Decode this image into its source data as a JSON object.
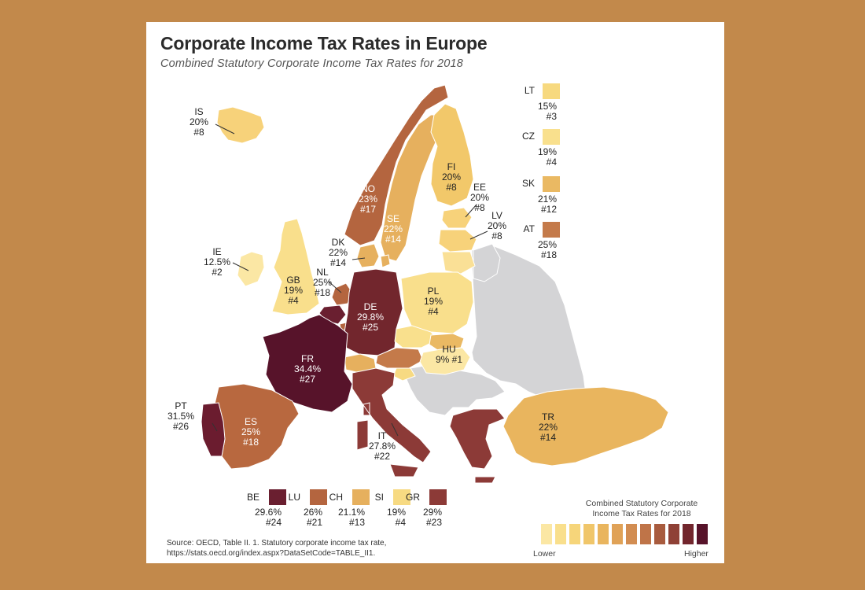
{
  "title": "Corporate Income Tax Rates in Europe",
  "subtitle": "Combined Statutory Corporate Income Tax Rates for 2018",
  "colors": {
    "page_background": "#c2894b",
    "non_oecd": "#d4d4d6",
    "scale": [
      "#fbe7a4",
      "#f9df8c",
      "#f6d57a",
      "#f0c66a",
      "#e9b55e",
      "#e0a257",
      "#d28d52",
      "#bf7448",
      "#a85b3e",
      "#8f4136",
      "#72262d",
      "#57132a"
    ]
  },
  "countries": {
    "IS": {
      "code": "IS",
      "rate": "20%",
      "rank": "#8"
    },
    "IE": {
      "code": "IE",
      "rate": "12.5%",
      "rank": "#2"
    },
    "GB": {
      "code": "GB",
      "rate": "19%",
      "rank": "#4"
    },
    "NO": {
      "code": "NO",
      "rate": "23%",
      "rank": "#17"
    },
    "SE": {
      "code": "SE",
      "rate": "22%",
      "rank": "#14"
    },
    "FI": {
      "code": "FI",
      "rate": "20%",
      "rank": "#8"
    },
    "EE": {
      "code": "EE",
      "rate": "20%",
      "rank": "#8"
    },
    "LV": {
      "code": "LV",
      "rate": "20%",
      "rank": "#8"
    },
    "DK": {
      "code": "DK",
      "rate": "22%",
      "rank": "#14"
    },
    "NL": {
      "code": "NL",
      "rate": "25%",
      "rank": "#18"
    },
    "DE": {
      "code": "DE",
      "rate": "29.8%",
      "rank": "#25"
    },
    "PL": {
      "code": "PL",
      "rate": "19%",
      "rank": "#4"
    },
    "FR": {
      "code": "FR",
      "rate": "34.4%",
      "rank": "#27"
    },
    "HU": {
      "code": "HU",
      "rate": "9%",
      "rank": "#1"
    },
    "PT": {
      "code": "PT",
      "rate": "31.5%",
      "rank": "#26"
    },
    "ES": {
      "code": "ES",
      "rate": "25%",
      "rank": "#18"
    },
    "IT": {
      "code": "IT",
      "rate": "27.8%",
      "rank": "#22"
    },
    "TR": {
      "code": "TR",
      "rate": "22%",
      "rank": "#14"
    }
  },
  "side_legend": [
    {
      "code": "LT",
      "rate": "15%",
      "rank": "#3",
      "color": "#f7d97f"
    },
    {
      "code": "CZ",
      "rate": "19%",
      "rank": "#4",
      "color": "#f9e08d"
    },
    {
      "code": "SK",
      "rate": "21%",
      "rank": "#12",
      "color": "#eab963"
    },
    {
      "code": "AT",
      "rate": "25%",
      "rank": "#18",
      "color": "#c47a4a"
    }
  ],
  "bottom_legend": [
    {
      "code": "BE",
      "rate": "29.6%",
      "rank": "#24",
      "color": "#6a1f30"
    },
    {
      "code": "LU",
      "rate": "26%",
      "rank": "#21",
      "color": "#b4653f"
    },
    {
      "code": "CH",
      "rate": "21.1%",
      "rank": "#13",
      "color": "#e6b05e"
    },
    {
      "code": "SI",
      "rate": "19%",
      "rank": "#4",
      "color": "#f7da82"
    },
    {
      "code": "GR",
      "rate": "29%",
      "rank": "#23",
      "color": "#8c3a37"
    }
  ],
  "scale_legend": {
    "title_line1": "Combined Statutory Corporate",
    "title_line2": "Income Tax Rates for 2018",
    "low_label": "Lower",
    "high_label": "Higher"
  },
  "source": {
    "line1": "Source:  OECD, Table II. 1. Statutory corporate income tax rate,",
    "line2": "https://stats.oecd.org/index.aspx?DataSetCode=TABLE_II1."
  }
}
